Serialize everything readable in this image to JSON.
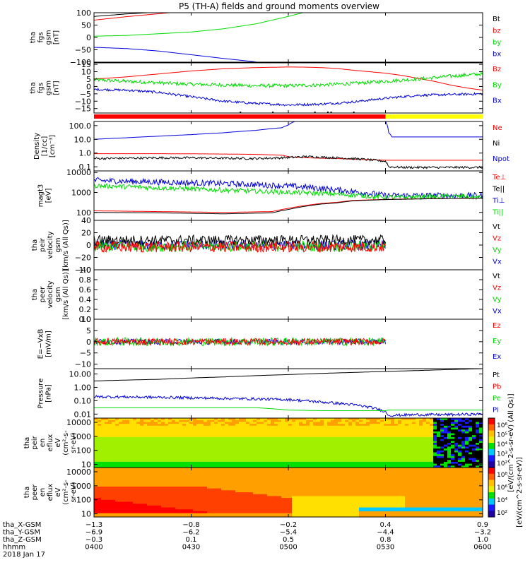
{
  "title": "P5 (TH-A) fields and ground moments overview",
  "colors": {
    "black": "#000000",
    "red": "#ff0000",
    "green": "#00dd00",
    "blue": "#0000dd",
    "yellow": "#ffff00"
  },
  "chart_data": [
    {
      "type": "line",
      "ylabel": [
        "tha",
        "fgs",
        "gsm",
        "[nT]"
      ],
      "yticks": [
        {
          "v": 100,
          "t": "100"
        },
        {
          "v": 50,
          "t": "50"
        },
        {
          "v": 0,
          "t": "0"
        },
        {
          "v": -50,
          "t": "−50"
        },
        {
          "v": -100,
          "t": "−100"
        }
      ],
      "ylim": [
        -100,
        100
      ],
      "legend": [
        {
          "label": "Bt",
          "color": "#000000"
        },
        {
          "label": "bz",
          "color": "#ff0000"
        },
        {
          "label": "by",
          "color": "#00dd00"
        },
        {
          "label": "bx",
          "color": "#0000dd"
        }
      ],
      "series": [
        {
          "color": "#000000",
          "x": [
            0,
            10,
            30
          ],
          "y": [
            85,
            95,
            110
          ]
        },
        {
          "color": "#ff0000",
          "x": [
            0,
            10,
            30
          ],
          "y": [
            70,
            84,
            108
          ]
        },
        {
          "color": "#00dd00",
          "x": [
            0,
            10,
            20,
            30,
            40,
            50,
            55,
            60,
            66
          ],
          "y": [
            5,
            8,
            15,
            22,
            35,
            55,
            70,
            85,
            105
          ]
        },
        {
          "color": "#0000dd",
          "x": [
            0,
            10,
            20,
            30,
            40,
            48,
            55
          ],
          "y": [
            -40,
            -45,
            -55,
            -70,
            -85,
            -96,
            -108
          ]
        }
      ]
    },
    {
      "type": "line",
      "ylabel": [
        "tha",
        "fgs",
        "gsm",
        "[nT]"
      ],
      "yticks": [
        {
          "v": 15,
          "t": "15"
        },
        {
          "v": 10,
          "t": "10"
        },
        {
          "v": 5,
          "t": "5"
        },
        {
          "v": 0,
          "t": "0"
        },
        {
          "v": -5,
          "t": "−5"
        },
        {
          "v": -10,
          "t": "−10"
        },
        {
          "v": -15,
          "t": "−15"
        }
      ],
      "ylim": [
        -18,
        16
      ],
      "legend": [
        {
          "label": "Bz",
          "color": "#ff0000"
        },
        {
          "label": "By",
          "color": "#00dd00"
        },
        {
          "label": "Bx",
          "color": "#0000dd"
        }
      ],
      "series": [
        {
          "color": "#ff0000",
          "x": [
            0,
            10,
            20,
            30,
            40,
            50,
            60,
            65,
            70,
            75,
            80,
            85,
            90,
            95,
            100,
            105,
            110,
            115,
            120
          ],
          "y": [
            5,
            6.5,
            8.5,
            10.5,
            12,
            12.8,
            13.2,
            13.1,
            12.8,
            12.2,
            11,
            10,
            9,
            7.5,
            5.5,
            3.5,
            1,
            -1,
            -2.5
          ]
        },
        {
          "color": "#00dd00",
          "x": [
            0,
            10,
            20,
            30,
            40,
            50,
            60,
            70,
            80,
            90,
            100,
            110,
            120
          ],
          "y": [
            4.5,
            3.5,
            2.5,
            1.5,
            1,
            0.5,
            0.5,
            1,
            2,
            3.5,
            5,
            7,
            8.5
          ],
          "noise": 1.2
        },
        {
          "color": "#0000dd",
          "x": [
            0,
            10,
            20,
            30,
            40,
            50,
            60,
            70,
            80,
            90,
            100,
            110,
            120
          ],
          "y": [
            -2,
            -2.5,
            -4,
            -7,
            -10,
            -11.5,
            -12.5,
            -12,
            -10.5,
            -8,
            -6,
            -5.5,
            -5
          ],
          "noise": 0.8
        }
      ]
    },
    {
      "type": "line",
      "scale": "log",
      "ylabel": [
        "Density",
        "[1/cc]",
        "[cm⁻³]"
      ],
      "yticks": [
        {
          "v": 100,
          "t": "100.0"
        },
        {
          "v": 10,
          "t": "10.0"
        },
        {
          "v": 1,
          "t": "1.0"
        },
        {
          "v": 0.1,
          "t": "0.1"
        }
      ],
      "ylim": [
        0.05,
        200
      ],
      "legend": [
        {
          "label": "Ne",
          "color": "#ff0000"
        },
        {
          "label": "Ni",
          "color": "#000000"
        },
        {
          "label": "Npot",
          "color": "#0000dd"
        }
      ],
      "series": [
        {
          "color": "#0000dd",
          "x": [
            0,
            10,
            20,
            30,
            40,
            50,
            58,
            60,
            61,
            62,
            66,
            68,
            71,
            71.5,
            72,
            80,
            90,
            91,
            92,
            100,
            110,
            120
          ],
          "y": [
            10,
            13,
            17,
            22,
            30,
            45,
            70,
            110,
            160,
            200,
            200,
            200,
            200,
            200,
            200,
            200,
            200,
            30,
            15,
            15,
            15,
            15
          ]
        },
        {
          "color": "#ff0000",
          "x": [
            0,
            10,
            20,
            30,
            40,
            50,
            58,
            60,
            62,
            64,
            66,
            70,
            75,
            80,
            85,
            90,
            91,
            95,
            100,
            110,
            120
          ],
          "y": [
            0.9,
            0.9,
            0.9,
            0.88,
            0.85,
            0.8,
            0.7,
            0.55,
            0.5,
            0.48,
            0.45,
            0.42,
            0.4,
            0.35,
            0.33,
            0.3,
            0.3,
            0.3,
            0.3,
            0.3,
            0.3
          ]
        },
        {
          "color": "#000000",
          "x": [
            0,
            10,
            20,
            30,
            40,
            50,
            58,
            62,
            66,
            70,
            75,
            80,
            85,
            90,
            91,
            95,
            100,
            110,
            120
          ],
          "y": [
            0.4,
            0.42,
            0.45,
            0.45,
            0.42,
            0.4,
            0.45,
            0.5,
            0.55,
            0.5,
            0.45,
            0.4,
            0.32,
            0.25,
            0.1,
            0.09,
            0.09,
            0.09,
            0.09
          ],
          "noise": 0.08
        }
      ]
    },
    {
      "type": "line",
      "scale": "log",
      "ylabel": [
        "magt3",
        "[eV]"
      ],
      "yticks": [
        {
          "v": 10000,
          "t": "10000"
        },
        {
          "v": 1000,
          "t": "1000"
        },
        {
          "v": 100,
          "t": "100"
        }
      ],
      "ylim": [
        40,
        12000
      ],
      "legend": [
        {
          "label": "Te⊥",
          "color": "#ff0000"
        },
        {
          "label": "Te||",
          "color": "#000000"
        },
        {
          "label": "Ti⊥",
          "color": "#0000dd"
        },
        {
          "label": "Ti||",
          "color": "#00dd00"
        }
      ],
      "series": [
        {
          "color": "#0000dd",
          "x": [
            0,
            20,
            40,
            60,
            70,
            80,
            90,
            100,
            110,
            120
          ],
          "y": [
            4000,
            3300,
            2800,
            2100,
            1600,
            1100,
            700,
            700,
            700,
            700
          ],
          "noise": 0.15
        },
        {
          "color": "#00dd00",
          "x": [
            0,
            20,
            40,
            60,
            70,
            80,
            90,
            100,
            110,
            120
          ],
          "y": [
            2200,
            1700,
            1300,
            1000,
            900,
            750,
            550,
            600,
            650,
            550
          ],
          "noise": 0.12
        },
        {
          "color": "#ff0000",
          "x": [
            0,
            20,
            40,
            55,
            60,
            65,
            70,
            75,
            80,
            90,
            100,
            110,
            120
          ],
          "y": [
            120,
            110,
            100,
            110,
            160,
            220,
            280,
            320,
            400,
            450,
            480,
            500,
            520
          ]
        },
        {
          "color": "#000000",
          "x": [
            0,
            20,
            40,
            55,
            60,
            65,
            70,
            75,
            80,
            90,
            100,
            110,
            120
          ],
          "y": [
            100,
            95,
            85,
            95,
            140,
            200,
            260,
            300,
            380,
            440,
            470,
            500,
            520
          ]
        }
      ]
    },
    {
      "type": "line",
      "ylabel": [
        "tha",
        "peir",
        "velocity",
        "gsm",
        "[km/s (All Qs)]"
      ],
      "yticks": [
        {
          "v": 40,
          "t": "40"
        },
        {
          "v": 20,
          "t": "20"
        },
        {
          "v": 0,
          "t": "0"
        },
        {
          "v": -20,
          "t": "−20"
        },
        {
          "v": -40,
          "t": "−40"
        }
      ],
      "ylim": [
        -40,
        40
      ],
      "legend": [
        {
          "label": "Vt",
          "color": "#000000"
        },
        {
          "label": "Vz",
          "color": "#ff0000"
        },
        {
          "label": "Vy",
          "color": "#00dd00"
        },
        {
          "label": "Vx",
          "color": "#0000dd"
        }
      ],
      "series": [
        {
          "color": "#0000dd",
          "x": [
            0,
            90
          ],
          "y": [
            0,
            0
          ],
          "noise": 8
        },
        {
          "color": "#00dd00",
          "x": [
            0,
            90
          ],
          "y": [
            -2,
            -2
          ],
          "noise": 9
        },
        {
          "color": "#000000",
          "x": [
            0,
            90
          ],
          "y": [
            8,
            8
          ],
          "noise": 8
        },
        {
          "color": "#ff0000",
          "x": [
            0,
            90
          ],
          "y": [
            -3,
            -3
          ],
          "noise": 9
        }
      ]
    },
    {
      "type": "line",
      "ylabel": [
        "tha",
        "peer",
        "velocity",
        "gsm",
        "[km/s (All Qs)]"
      ],
      "yticks": [
        {
          "v": 1.0,
          "t": "1.0"
        },
        {
          "v": 0.8,
          "t": "0.8"
        },
        {
          "v": 0.6,
          "t": "0.6"
        },
        {
          "v": 0.4,
          "t": "0.4"
        },
        {
          "v": 0.2,
          "t": "0.2"
        },
        {
          "v": 0.0,
          "t": "0.0"
        }
      ],
      "ylim": [
        0,
        1
      ],
      "legend": [
        {
          "label": "Vt",
          "color": "#000000"
        },
        {
          "label": "Vz",
          "color": "#ff0000"
        },
        {
          "label": "Vy",
          "color": "#00dd00"
        },
        {
          "label": "Vx",
          "color": "#0000dd"
        }
      ],
      "series": []
    },
    {
      "type": "line",
      "ylabel": [
        "E=−VxB",
        "[mV/m]"
      ],
      "yticks": [
        {
          "v": 10,
          "t": "10"
        },
        {
          "v": 5,
          "t": "5"
        },
        {
          "v": 0,
          "t": "0"
        },
        {
          "v": -5,
          "t": "−5"
        },
        {
          "v": -10,
          "t": "−10"
        }
      ],
      "ylim": [
        -12,
        10
      ],
      "legend": [
        {
          "label": "Ez",
          "color": "#ff0000"
        },
        {
          "label": "Ey",
          "color": "#00dd00"
        },
        {
          "label": "Ex",
          "color": "#0000dd"
        }
      ],
      "series": [
        {
          "color": "#0000dd",
          "x": [
            0,
            90
          ],
          "y": [
            0,
            0
          ],
          "noise": 1.2
        },
        {
          "color": "#00dd00",
          "x": [
            0,
            90
          ],
          "y": [
            0,
            0
          ],
          "noise": 1.8
        },
        {
          "color": "#ff0000",
          "x": [
            0,
            90
          ],
          "y": [
            0,
            0
          ],
          "noise": 1.5
        }
      ]
    },
    {
      "type": "line",
      "scale": "log",
      "ylabel": [
        "Pressure",
        "[nPa]"
      ],
      "yticks": [
        {
          "v": 10,
          "t": "10.00"
        },
        {
          "v": 1,
          "t": "1.00"
        },
        {
          "v": 0.1,
          "t": "0.10"
        },
        {
          "v": 0.01,
          "t": "0.01"
        }
      ],
      "ylim": [
        0.005,
        25
      ],
      "legend": [
        {
          "label": "Pt",
          "color": "#000000"
        },
        {
          "label": "Pb",
          "color": "#ff0000"
        },
        {
          "label": "Pe",
          "color": "#00dd00"
        },
        {
          "label": "Pi",
          "color": "#0000dd"
        }
      ],
      "series": [
        {
          "color": "#000000",
          "x": [
            0,
            20,
            40,
            60,
            80,
            100,
            120
          ],
          "y": [
            3,
            4,
            6,
            9,
            13,
            18,
            25
          ]
        },
        {
          "color": "#0000dd",
          "x": [
            0,
            20,
            40,
            60,
            70,
            80,
            90,
            91,
            100,
            110,
            120
          ],
          "y": [
            0.2,
            0.18,
            0.15,
            0.12,
            0.08,
            0.05,
            0.015,
            0.008,
            0.009,
            0.009,
            0.01
          ],
          "noise": 0.1
        },
        {
          "color": "#00dd00",
          "x": [
            0,
            20,
            40,
            50,
            60,
            70,
            80,
            90,
            91,
            100,
            120
          ],
          "y": [
            0.03,
            0.03,
            0.03,
            0.03,
            0.02,
            0.018,
            0.018,
            0.018,
            0.02,
            0.02,
            0.02
          ]
        }
      ]
    },
    {
      "type": "heatmap",
      "scale": "log",
      "ylabel": [
        "tha",
        "peir",
        "en",
        "eflux",
        "eV",
        "(cm²-s-",
        "sr-eV)"
      ],
      "yticks": [
        {
          "v": 10000,
          "t": "10000"
        },
        {
          "v": 1000,
          "t": "1000"
        },
        {
          "v": 100,
          "t": "100"
        },
        {
          "v": 10,
          "t": "10"
        }
      ],
      "ylim": [
        6,
        20000
      ],
      "colorbar": {
        "ticks": [
          "10⁶",
          "10⁵",
          "10⁴",
          "10³",
          "10²"
        ],
        "label": "[eV/(cm^2-s-sr-eV) (All Qs)]"
      }
    },
    {
      "type": "heatmap",
      "scale": "log",
      "ylabel": [
        "tha",
        "peer",
        "en",
        "eflux",
        "eV",
        "(cm²-s-",
        "sr-eV)"
      ],
      "yticks": [
        {
          "v": 10000,
          "t": "10000"
        },
        {
          "v": 1000,
          "t": "1000"
        },
        {
          "v": 100,
          "t": "100"
        },
        {
          "v": 10,
          "t": "10"
        }
      ],
      "ylim": [
        6,
        20000
      ],
      "colorbar": {
        "ticks": [
          "10⁸",
          "10⁶",
          "10⁴",
          "10²"
        ],
        "label": "[eV/(cm^2-s-sr-eV)]"
      }
    }
  ],
  "xaxis": {
    "labels": [
      "tha_X-GSM",
      "tha_Y-GSM",
      "tha_Z-GSM",
      "hhmm",
      "2018 Jan 17"
    ],
    "ticks": [
      {
        "x": 0,
        "vals": [
          "−1.3",
          "−6.9",
          "−0.3",
          "0400"
        ]
      },
      {
        "x": 30,
        "vals": [
          "−0.8",
          "−6.2",
          "0.1",
          "0430"
        ]
      },
      {
        "x": 60,
        "vals": [
          "−0.2",
          "−5.4",
          "0.5",
          "0500"
        ]
      },
      {
        "x": 90,
        "vals": [
          "0.4",
          "−4.4",
          "0.8",
          "0530"
        ]
      },
      {
        "x": 120,
        "vals": [
          "0.9",
          "−3.2",
          "1.0",
          "0600"
        ]
      }
    ]
  }
}
